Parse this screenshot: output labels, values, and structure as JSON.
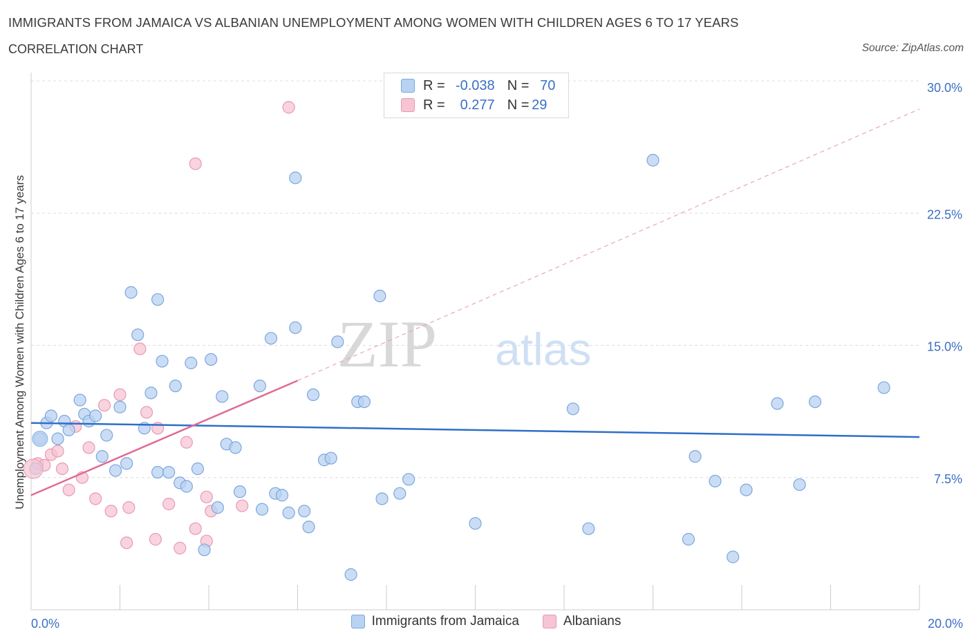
{
  "header": {
    "title": "IMMIGRANTS FROM JAMAICA VS ALBANIAN UNEMPLOYMENT AMONG WOMEN WITH CHILDREN AGES 6 TO 17 YEARS",
    "subtitle": "CORRELATION CHART",
    "source": "Source: ZipAtlas.com"
  },
  "stats": {
    "rows": [
      {
        "r_label": "R =",
        "r_value": "-0.038",
        "n_label": "N =",
        "n_value": "70"
      },
      {
        "r_label": "R =",
        "r_value": "0.277",
        "n_label": "N =",
        "n_value": "29"
      }
    ]
  },
  "watermark": {
    "zip": "ZIP",
    "atlas": "atlas"
  },
  "legend": {
    "items": [
      "Immigrants from Jamaica",
      "Albanians"
    ]
  },
  "colors": {
    "jamaica_fill": "#b8d2f2",
    "jamaica_stroke": "#7aa7dd",
    "jamaica_line": "#2d6ec8",
    "albanian_fill": "#f7c4d3",
    "albanian_stroke": "#e79ab3",
    "albanian_line": "#e06a94",
    "tick_label": "#3a6fc4",
    "grid": "#dcdcdc"
  },
  "chart_data": {
    "type": "scatter",
    "title": "IMMIGRANTS FROM JAMAICA VS ALBANIAN UNEMPLOYMENT AMONG WOMEN WITH CHILDREN AGES 6 TO 17 YEARS",
    "ylabel": "Unemployment Among Women with Children Ages 6 to 17 years",
    "xlabel": "",
    "xlim": [
      0,
      20
    ],
    "ylim": [
      0,
      30
    ],
    "x_tick_labels": [
      "0.0%",
      "20.0%"
    ],
    "y_ticks": [
      7.5,
      15.0,
      22.5,
      30.0
    ],
    "y_tick_labels": [
      "7.5%",
      "15.0%",
      "22.5%",
      "30.0%"
    ],
    "grid": true,
    "legend_position": "bottom",
    "series": [
      {
        "name": "Immigrants from Jamaica",
        "trend": {
          "x": [
            0,
            20
          ],
          "y": [
            10.6,
            9.8
          ],
          "style": "solid"
        },
        "points": [
          [
            0.1,
            8.0
          ],
          [
            0.2,
            9.7
          ],
          [
            0.35,
            10.6
          ],
          [
            0.45,
            11.0
          ],
          [
            0.6,
            9.7
          ],
          [
            0.75,
            10.7
          ],
          [
            0.85,
            10.2
          ],
          [
            1.1,
            11.9
          ],
          [
            1.2,
            11.1
          ],
          [
            1.3,
            10.7
          ],
          [
            1.45,
            11.0
          ],
          [
            1.6,
            8.7
          ],
          [
            1.7,
            9.9
          ],
          [
            1.9,
            7.9
          ],
          [
            2.0,
            11.5
          ],
          [
            2.15,
            8.3
          ],
          [
            2.25,
            18.0
          ],
          [
            2.4,
            15.6
          ],
          [
            2.55,
            10.3
          ],
          [
            2.7,
            12.3
          ],
          [
            2.85,
            7.8
          ],
          [
            2.85,
            17.6
          ],
          [
            2.95,
            14.1
          ],
          [
            3.1,
            7.8
          ],
          [
            3.25,
            12.7
          ],
          [
            3.35,
            7.2
          ],
          [
            3.5,
            7.0
          ],
          [
            3.6,
            14.0
          ],
          [
            3.75,
            8.0
          ],
          [
            3.9,
            3.4
          ],
          [
            4.05,
            14.2
          ],
          [
            4.2,
            5.8
          ],
          [
            4.3,
            12.1
          ],
          [
            4.4,
            9.4
          ],
          [
            4.6,
            9.2
          ],
          [
            4.7,
            6.7
          ],
          [
            5.15,
            12.7
          ],
          [
            5.2,
            5.7
          ],
          [
            5.4,
            15.4
          ],
          [
            5.5,
            6.6
          ],
          [
            5.65,
            6.5
          ],
          [
            5.8,
            5.5
          ],
          [
            5.95,
            16.0
          ],
          [
            5.95,
            24.5
          ],
          [
            6.15,
            5.6
          ],
          [
            6.25,
            4.7
          ],
          [
            6.35,
            12.2
          ],
          [
            6.6,
            8.5
          ],
          [
            6.75,
            8.6
          ],
          [
            6.9,
            15.2
          ],
          [
            7.2,
            2.0
          ],
          [
            7.35,
            11.8
          ],
          [
            7.5,
            11.8
          ],
          [
            7.85,
            17.8
          ],
          [
            7.9,
            6.3
          ],
          [
            8.3,
            6.6
          ],
          [
            8.5,
            7.4
          ],
          [
            10.0,
            4.9
          ],
          [
            12.2,
            11.4
          ],
          [
            12.55,
            4.6
          ],
          [
            14.0,
            25.5
          ],
          [
            14.8,
            4.0
          ],
          [
            14.95,
            8.7
          ],
          [
            15.4,
            7.3
          ],
          [
            15.8,
            3.0
          ],
          [
            16.1,
            6.8
          ],
          [
            16.8,
            11.7
          ],
          [
            17.3,
            7.1
          ],
          [
            17.65,
            11.8
          ],
          [
            19.2,
            12.6
          ]
        ]
      },
      {
        "name": "Albanians",
        "trend": {
          "x": [
            0,
            6.0
          ],
          "y": [
            6.5,
            13.0
          ],
          "style": "solid",
          "extension": {
            "x": [
              6.0,
              20
            ],
            "y": [
              13.0,
              28.4
            ],
            "style": "dashed"
          }
        },
        "points": [
          [
            0.15,
            8.3
          ],
          [
            0.3,
            8.2
          ],
          [
            0.45,
            8.8
          ],
          [
            0.6,
            9.0
          ],
          [
            0.7,
            8.0
          ],
          [
            0.85,
            6.8
          ],
          [
            1.0,
            10.4
          ],
          [
            1.15,
            7.5
          ],
          [
            1.3,
            9.2
          ],
          [
            1.45,
            6.3
          ],
          [
            1.65,
            11.6
          ],
          [
            1.8,
            5.6
          ],
          [
            2.0,
            12.2
          ],
          [
            2.15,
            3.8
          ],
          [
            2.2,
            5.8
          ],
          [
            2.45,
            14.8
          ],
          [
            2.6,
            11.2
          ],
          [
            2.8,
            4.0
          ],
          [
            2.85,
            10.3
          ],
          [
            3.1,
            6.0
          ],
          [
            3.35,
            3.5
          ],
          [
            3.5,
            9.5
          ],
          [
            3.7,
            4.6
          ],
          [
            3.7,
            25.3
          ],
          [
            3.95,
            3.9
          ],
          [
            3.95,
            6.4
          ],
          [
            4.05,
            5.6
          ],
          [
            4.75,
            5.9
          ],
          [
            5.8,
            28.5
          ]
        ]
      }
    ]
  }
}
